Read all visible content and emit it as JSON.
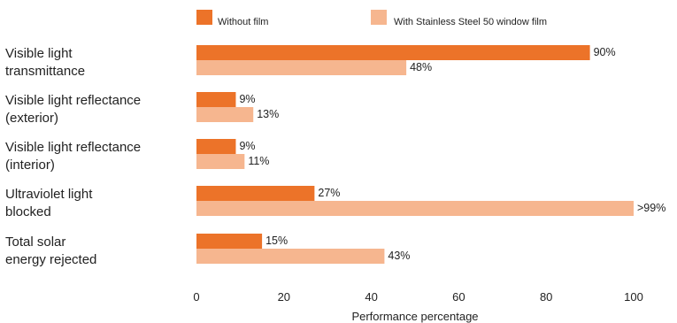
{
  "chart_data": {
    "type": "bar",
    "orientation": "horizontal",
    "categories": [
      [
        "Visible light",
        "transmittance"
      ],
      [
        "Visible light reflectance",
        "(exterior)"
      ],
      [
        "Visible light reflectance",
        "(interior)"
      ],
      [
        "Ultraviolet light",
        "blocked"
      ],
      [
        "Total solar",
        "energy rejected"
      ]
    ],
    "series": [
      {
        "name": "Without film",
        "color": "#ec7329",
        "values": [
          90,
          9,
          9,
          27,
          15
        ],
        "labels": [
          "90%",
          "9%",
          "9%",
          "27%",
          "15%"
        ]
      },
      {
        "name": "With Stainless Steel 50 window film",
        "color": "#f6b68f",
        "values": [
          48,
          13,
          11,
          100,
          43
        ],
        "labels": [
          "48%",
          "13%",
          "11%",
          ">99%",
          "43%"
        ]
      }
    ],
    "xlabel": "Performance percentage",
    "xlim": [
      0,
      100
    ],
    "xticks": [
      0,
      20,
      40,
      60,
      80,
      100
    ],
    "grid": false,
    "legend_position": "top"
  }
}
